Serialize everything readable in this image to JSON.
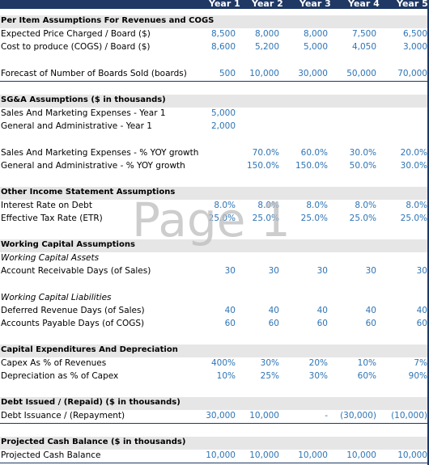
{
  "years": [
    "Year 1",
    "Year 2",
    "Year 3",
    "Year 4",
    "Year 5"
  ],
  "watermark": "Page 1",
  "colors": {
    "header_bg": "#1f3864",
    "section_bg": "#e7e6e6",
    "value_text": "#2e74b5"
  },
  "rows": [
    {
      "label": "Per Item Assumptions For Revenues and COGS",
      "kind": "section",
      "values": []
    },
    {
      "label": "Expected Price Charged / Board ($)",
      "values": [
        "8,500",
        "8,000",
        "8,000",
        "7,500",
        "6,500"
      ]
    },
    {
      "label": "Cost to produce (COGS) / Board ($)",
      "values": [
        "8,600",
        "5,200",
        "5,000",
        "4,050",
        "3,000"
      ]
    },
    {
      "label": "Forecast of Number of Boards Sold  (boards)",
      "values": [
        "500",
        "10,000",
        "30,000",
        "50,000",
        "70,000"
      ]
    },
    {
      "label": "SG&A Assumptions ($ in thousands)",
      "kind": "section",
      "values": []
    },
    {
      "label": "Sales And Marketing Expenses - Year 1",
      "values": [
        "5,000",
        "",
        "",
        "",
        ""
      ]
    },
    {
      "label": "General and Administrative  - Year 1",
      "values": [
        "2,000",
        "",
        "",
        "",
        ""
      ]
    },
    {
      "label": "Sales And Marketing Expenses - %  YOY growth",
      "values": [
        "",
        "70.0%",
        "60.0%",
        "30.0%",
        "20.0%"
      ]
    },
    {
      "label": "General and Administrative  - % YOY growth",
      "values": [
        "",
        "150.0%",
        "150.0%",
        "50.0%",
        "30.0%"
      ]
    },
    {
      "label": "Other Income Statement Assumptions",
      "kind": "section",
      "values": []
    },
    {
      "label": "Interest Rate on Debt",
      "values": [
        "8.0%",
        "8.0%",
        "8.0%",
        "8.0%",
        "8.0%"
      ]
    },
    {
      "label": "Effective Tax Rate (ETR)",
      "values": [
        "25.0%",
        "25.0%",
        "25.0%",
        "25.0%",
        "25.0%"
      ]
    },
    {
      "label": "Working Capital Assumptions",
      "kind": "section",
      "values": []
    },
    {
      "label": "Working Capital Assets",
      "kind": "italic",
      "values": []
    },
    {
      "label": "Account Receivable Days (of Sales)",
      "values": [
        "30",
        "30",
        "30",
        "30",
        "30"
      ]
    },
    {
      "label": "Working Capital Liabilities",
      "kind": "italic",
      "values": []
    },
    {
      "label": "Deferred Revenue Days (of Sales)",
      "values": [
        "40",
        "40",
        "40",
        "40",
        "40"
      ]
    },
    {
      "label": "Accounts Payable Days (of COGS)",
      "values": [
        "60",
        "60",
        "60",
        "60",
        "60"
      ]
    },
    {
      "label": "Capital Expenditures And Depreciation",
      "kind": "section",
      "values": []
    },
    {
      "label": "Capex As % of Revenues",
      "values": [
        "400%",
        "30%",
        "20%",
        "10%",
        "7%"
      ]
    },
    {
      "label": "Depreciation as % of Capex",
      "values": [
        "10%",
        "25%",
        "30%",
        "60%",
        "90%"
      ]
    },
    {
      "label": "Debt Issued / (Repaid) ($ in thousands)",
      "kind": "section",
      "values": []
    },
    {
      "label": "Debt Issuance / (Repayment)",
      "values": [
        "30,000",
        "10,000",
        "-",
        "(30,000)",
        "(10,000)"
      ]
    },
    {
      "label": "Projected Cash Balance ($ in thousands)",
      "kind": "section",
      "values": []
    },
    {
      "label": "Projected Cash Balance",
      "values": [
        "10,000",
        "10,000",
        "10,000",
        "10,000",
        "10,000"
      ]
    }
  ]
}
